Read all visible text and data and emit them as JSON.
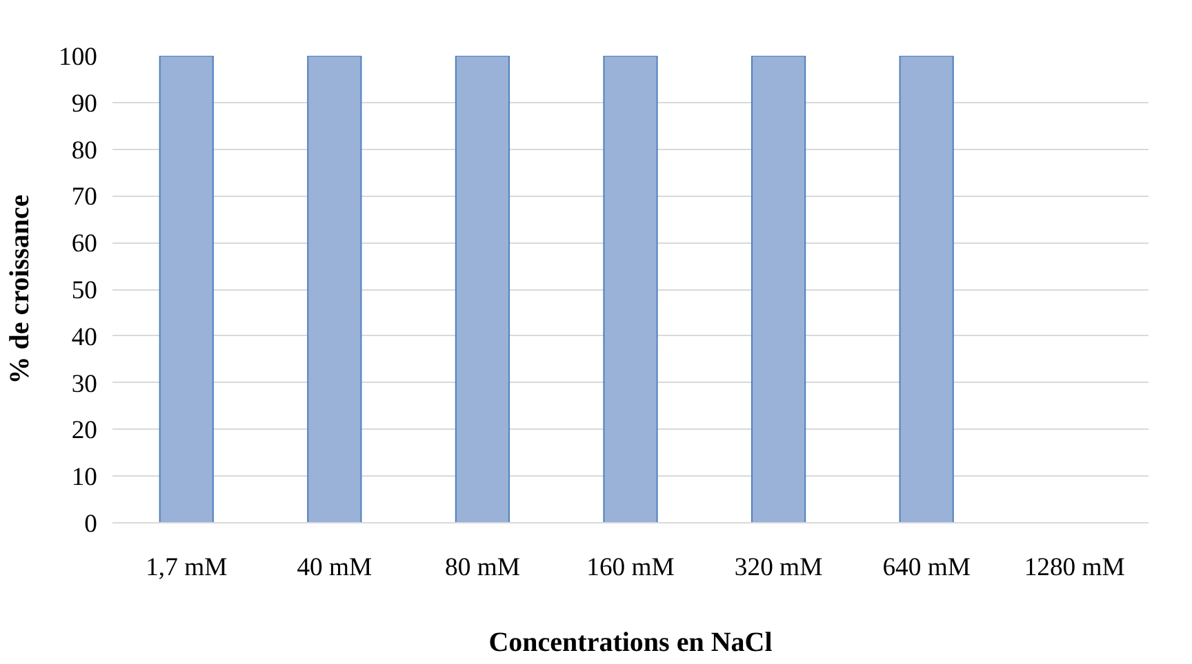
{
  "chart_data": {
    "type": "bar",
    "xlabel": "Concentrations en NaCl",
    "ylabel": "% de croissance",
    "categories": [
      "1,7 mM",
      "40 mM",
      "80 mM",
      "160 mM",
      "320 mM",
      "640 mM",
      "1280 mM"
    ],
    "values": [
      100,
      100,
      100,
      100,
      100,
      100,
      null
    ],
    "color": "#9ab1d8",
    "ylim": [
      0,
      100
    ],
    "yticks": [
      0,
      10,
      20,
      30,
      40,
      50,
      60,
      70,
      80,
      90,
      100
    ],
    "grid": "y"
  }
}
